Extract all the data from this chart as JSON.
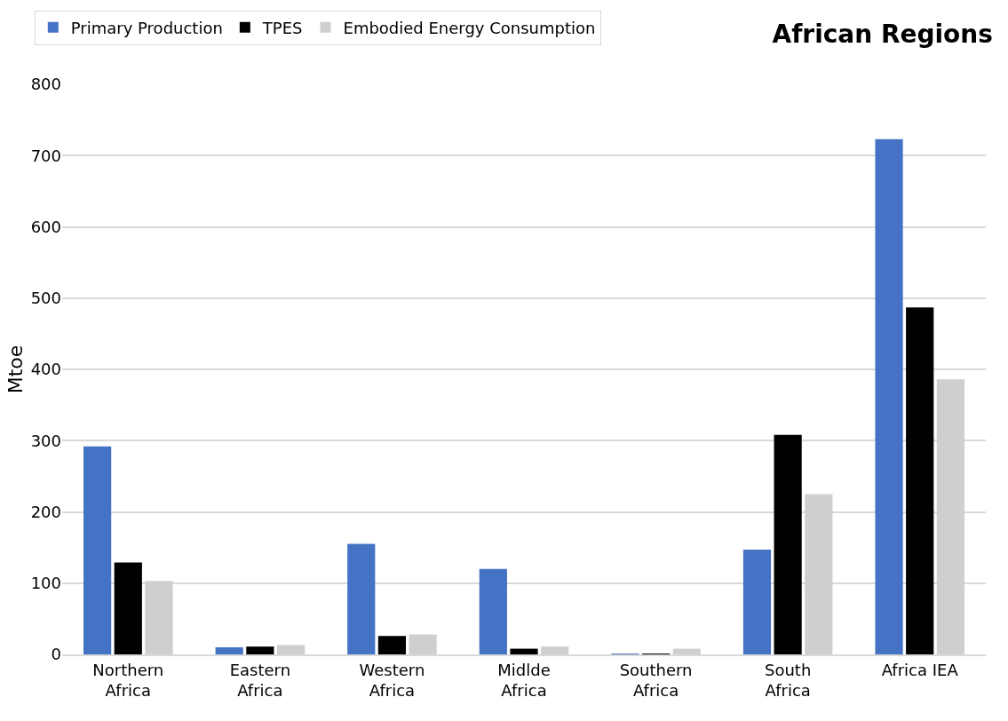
{
  "chart_data": {
    "type": "bar",
    "title": "African Regions",
    "ylabel": "Mtoe",
    "categories": [
      "Northern\nAfrica",
      "Eastern\nAfrica",
      "Western\nAfrica",
      "Midlde\nAfrica",
      "Southern\nAfrica",
      "South\nAfrica",
      "Africa IEA"
    ],
    "series": [
      {
        "name": "Primary Production",
        "color": "#4472c4",
        "values": [
          292,
          10,
          155,
          120,
          1,
          147,
          723
        ]
      },
      {
        "name": "TPES",
        "color": "#000000",
        "values": [
          129,
          11,
          26,
          8,
          1,
          308,
          487
        ]
      },
      {
        "name": "Embodied Energy Consumption",
        "color": "#d0cece",
        "values": [
          103,
          13,
          28,
          11,
          8,
          225,
          386
        ]
      }
    ],
    "ylim": [
      0,
      800
    ],
    "yticks": [
      0,
      100,
      200,
      300,
      400,
      500,
      600,
      700,
      800
    ],
    "grid": "y",
    "legend": "top left"
  }
}
